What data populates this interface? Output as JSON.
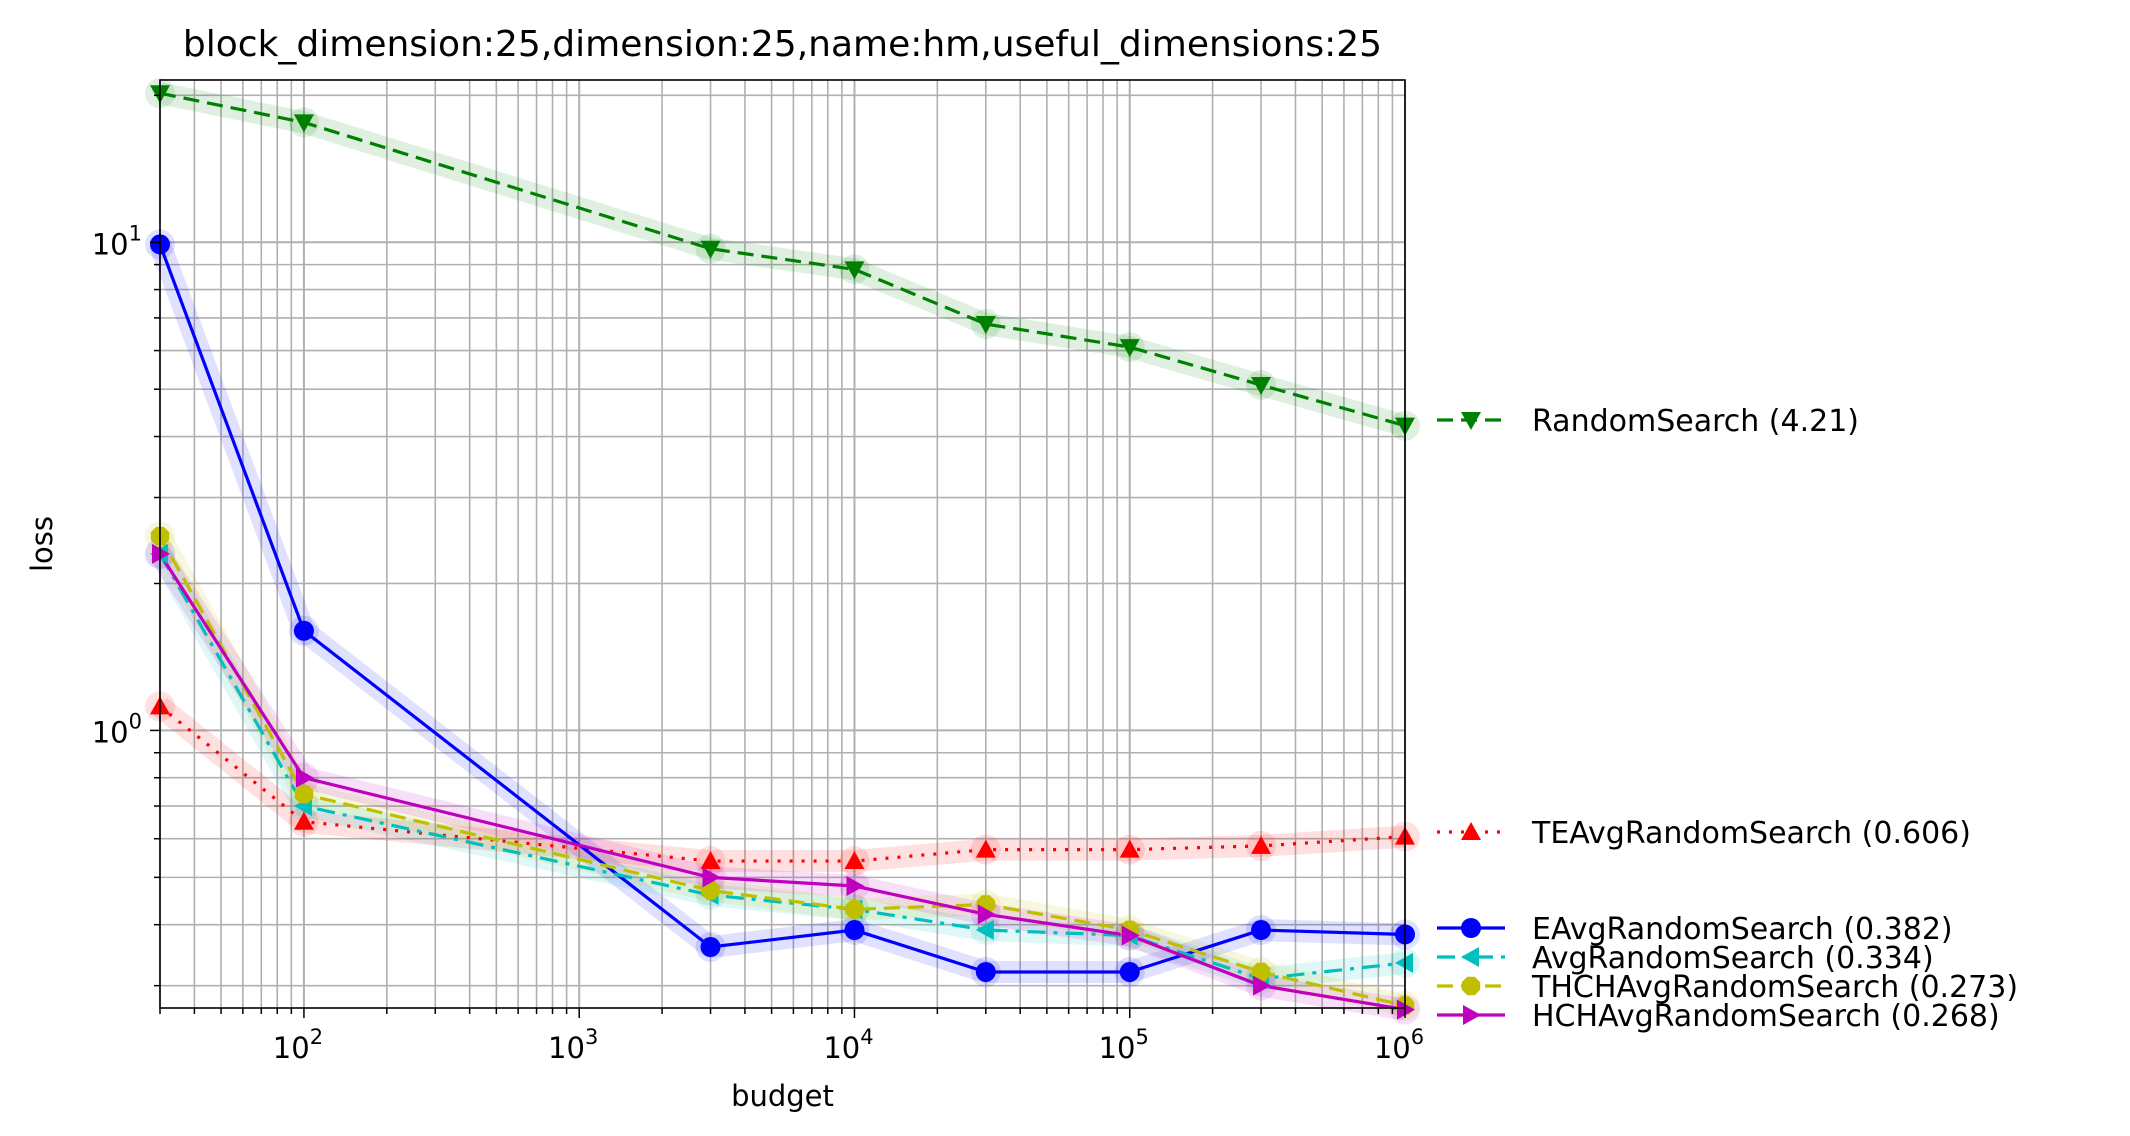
{
  "chart_data": {
    "type": "line",
    "title": "block_dimension:25,dimension:25,name:hm,useful_dimensions:25",
    "xlabel": "budget",
    "ylabel": "loss",
    "xscale": "log",
    "yscale": "log",
    "xlim": [
      30,
      1000000
    ],
    "ylim": [
      0.27,
      21.5
    ],
    "grid": true,
    "legend_position": "right-outside",
    "x_ticks": [
      {
        "value": 100,
        "base": "10",
        "exp": "2"
      },
      {
        "value": 1000,
        "base": "10",
        "exp": "3"
      },
      {
        "value": 10000,
        "base": "10",
        "exp": "4"
      },
      {
        "value": 100000,
        "base": "10",
        "exp": "5"
      },
      {
        "value": 1000000,
        "base": "10",
        "exp": "6"
      }
    ],
    "y_ticks": [
      {
        "value": 1,
        "base": "10",
        "exp": "0"
      },
      {
        "value": 10,
        "base": "10",
        "exp": "1"
      }
    ],
    "series": [
      {
        "name": "RandomSearch (4.21)",
        "color": "#008000",
        "linestyle": "dashed",
        "marker": "triangle-down",
        "x": [
          30,
          100,
          3000,
          10000,
          30000,
          100000,
          300000,
          1000000
        ],
        "y": [
          20.2,
          17.6,
          9.7,
          8.8,
          6.8,
          6.1,
          5.1,
          4.21
        ]
      },
      {
        "name": "TEAvgRandomSearch (0.606)",
        "color": "#ff0000",
        "linestyle": "dotted",
        "marker": "triangle-up",
        "x": [
          30,
          100,
          3000,
          10000,
          30000,
          100000,
          300000,
          1000000
        ],
        "y": [
          1.12,
          0.65,
          0.54,
          0.54,
          0.57,
          0.57,
          0.58,
          0.606
        ]
      },
      {
        "name": "EAvgRandomSearch (0.382)",
        "color": "#0000ff",
        "linestyle": "solid",
        "marker": "circle",
        "x": [
          30,
          100,
          3000,
          10000,
          30000,
          100000,
          300000,
          1000000
        ],
        "y": [
          9.9,
          1.6,
          0.36,
          0.39,
          0.32,
          0.32,
          0.39,
          0.382
        ]
      },
      {
        "name": "AvgRandomSearch (0.334)",
        "color": "#00bfbf",
        "linestyle": "dashdot",
        "marker": "triangle-left",
        "x": [
          30,
          100,
          3000,
          10000,
          30000,
          100000,
          300000,
          1000000
        ],
        "y": [
          2.3,
          0.7,
          0.46,
          0.43,
          0.39,
          0.38,
          0.31,
          0.334
        ]
      },
      {
        "name": "THCHAvgRandomSearch (0.273)",
        "color": "#bfbf00",
        "linestyle": "dashed",
        "marker": "octagon",
        "x": [
          30,
          100,
          3000,
          10000,
          30000,
          100000,
          300000,
          1000000
        ],
        "y": [
          2.5,
          0.74,
          0.47,
          0.43,
          0.44,
          0.39,
          0.32,
          0.273
        ]
      },
      {
        "name": "HCHAvgRandomSearch (0.268)",
        "color": "#bf00bf",
        "linestyle": "solid",
        "marker": "triangle-right",
        "x": [
          30,
          100,
          3000,
          10000,
          30000,
          100000,
          300000,
          1000000
        ],
        "y": [
          2.3,
          0.8,
          0.5,
          0.48,
          0.42,
          0.38,
          0.3,
          0.268
        ]
      }
    ],
    "legend_groups": [
      {
        "label_values_from": "series",
        "entries": [
          0
        ]
      },
      {
        "label_values_from": "series",
        "entries": [
          1
        ]
      },
      {
        "label_values_from": "series",
        "entries": [
          2,
          3,
          4,
          5
        ]
      }
    ]
  }
}
